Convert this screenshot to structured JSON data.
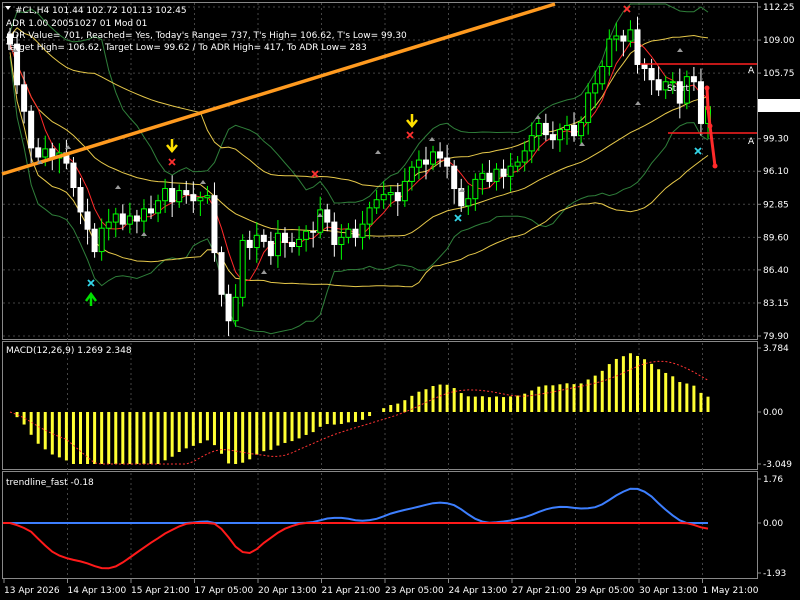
{
  "header": {
    "symbol_line": "#CL,H4  101.44 102.72 101.13 102.45",
    "adr_line": "ADR 1.00 20051027 01 Mod 01",
    "adr_values_line": "ADR Value= 701, Reached= Yes, Today's Range= 737, T's High= 106.62, T's Low= 99.30",
    "target_line": "Target High= 106.62, Target Low= 99.62 / To ADR High= 417, To ADR Low= 283"
  },
  "price_axis": {
    "ticks": [
      "112.25",
      "109.00",
      "105.75",
      "102.45",
      "99.30",
      "96.10",
      "92.85",
      "89.60",
      "86.40",
      "83.15",
      "79.90"
    ],
    "current_price": "102.45"
  },
  "macd": {
    "title": "MACD(12,26,9) 1.269 2.348",
    "ticks": [
      "3.784",
      "0.00",
      "-3.049"
    ]
  },
  "trendline": {
    "title": "trendline_fast -0.18",
    "ticks": [
      "1.76",
      "0.00",
      "-1.93"
    ]
  },
  "time_axis": {
    "labels": [
      "13 Apr 2026",
      "14 Apr 13:00",
      "15 Apr 21:00",
      "17 Apr 05:00",
      "20 Apr 13:00",
      "21 Apr 21:00",
      "23 Apr 05:00",
      "24 Apr 13:00",
      "27 Apr 21:00",
      "29 Apr 05:00",
      "30 Apr 13:00",
      "1 May 21:00"
    ]
  },
  "annotations": {
    "a_label": "A",
    "start_label": "Start"
  },
  "colors": {
    "bull_candle": "#00ff00",
    "bear_candle": "#ffffff",
    "trendline": "#ff9a1f",
    "macd_hist": "#ffff33",
    "macd_signal": "#ff3333",
    "trend_blue": "#3d7fff",
    "trend_red": "#ff1a1a",
    "band_yellow": "#e6c84a",
    "band_green": "#2f7f3a",
    "level_red": "#ff2020"
  },
  "chart_data": {
    "type": "candlestick",
    "closes": [
      108.6,
      104.6,
      102.0,
      98.4,
      97.5,
      98.3,
      97.4,
      97.9,
      96.9,
      94.5,
      92.1,
      90.4,
      88.2,
      90.5,
      91.1,
      91.9,
      90.9,
      91.7,
      91.2,
      92.4,
      92.0,
      93.2,
      94.4,
      93.1,
      94.2,
      93.8,
      93.2,
      93.5,
      93.7,
      88.1,
      84.0,
      81.4,
      83.7,
      89.3,
      88.6,
      89.8,
      89.2,
      87.8,
      90.0,
      89.1,
      88.7,
      89.4,
      90.2,
      90.1,
      92.3,
      91.1,
      88.9,
      89.6,
      90.4,
      89.6,
      90.9,
      92.5,
      93.3,
      93.8,
      94.0,
      93.2,
      95.1,
      96.5,
      97.2,
      96.8,
      98.0,
      97.4,
      96.6,
      94.4,
      92.7,
      93.4,
      95.3,
      95.9,
      95.1,
      96.3,
      95.6,
      96.6,
      97.0,
      98.1,
      99.6,
      100.8,
      99.7,
      99.2,
      100.2,
      100.6,
      99.6,
      100.9,
      103.8,
      104.7,
      106.4,
      109.1,
      109.4,
      108.9,
      110.0,
      106.6,
      106.2,
      105.1,
      104.1,
      104.9,
      104.9,
      102.8,
      105.4,
      104.9,
      100.8,
      102.45
    ]
  }
}
